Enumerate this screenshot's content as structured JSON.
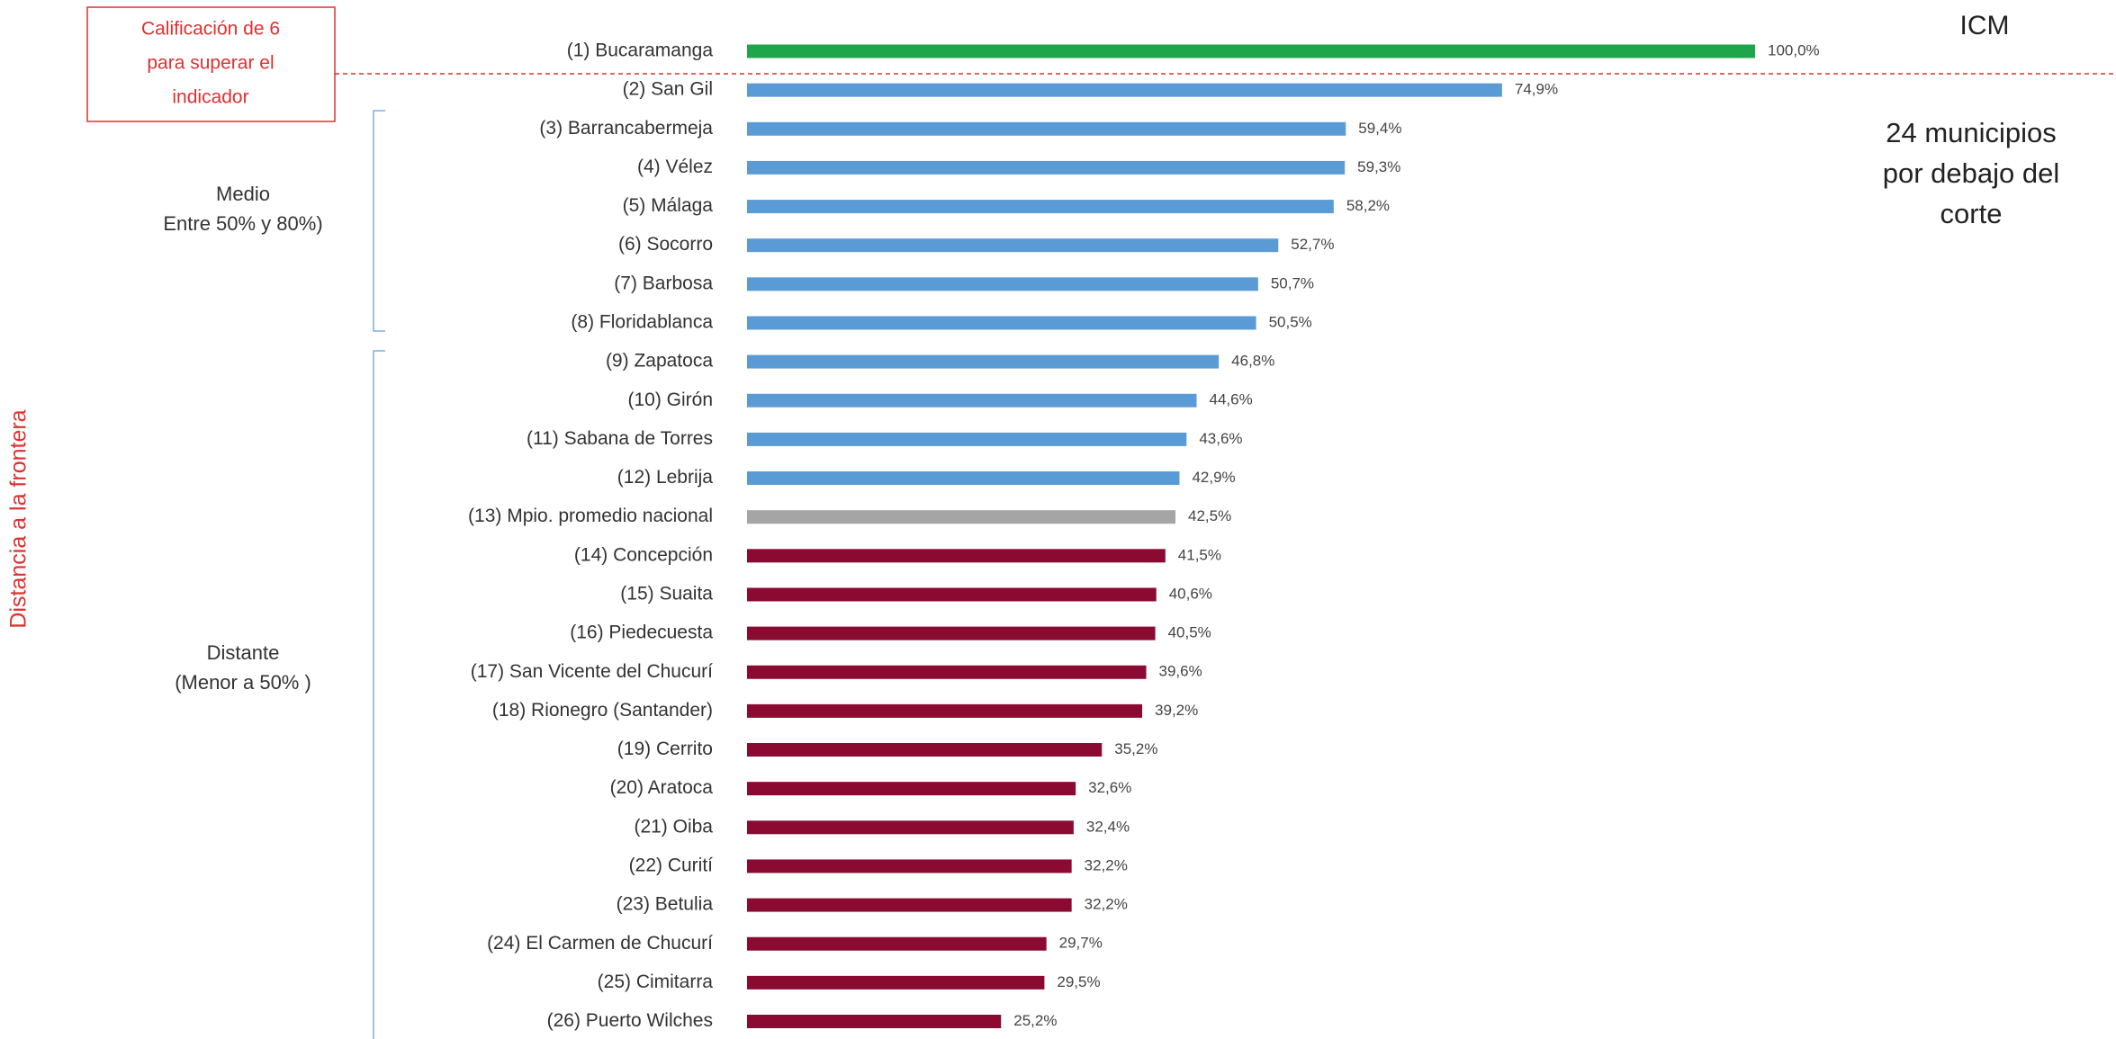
{
  "chart_data": {
    "type": "barh",
    "categories": [
      "(1) Bucaramanga",
      "(2) San Gil",
      "(3) Barrancabermeja",
      "(4) Vélez",
      "(5) Málaga",
      "(6) Socorro",
      "(7) Barbosa",
      "(8) Floridablanca",
      "(9) Zapatoca",
      "(10) Girón",
      "(11) Sabana de Torres",
      "(12) Lebrija",
      "(13) Mpio. promedio nacional",
      "(14) Concepción",
      "(15) Suaita",
      "(16) Piedecuesta",
      "(17) San Vicente del Chucurí",
      "(18) Rionegro (Santander)",
      "(19) Cerrito",
      "(20) Aratoca",
      "(21) Oiba",
      "(22) Curití",
      "(23) Betulia",
      "(24) El Carmen de Chucurí",
      "(25) Cimitarra",
      "(26) Puerto Wilches"
    ],
    "values": [
      100.0,
      74.9,
      59.4,
      59.3,
      58.2,
      52.7,
      50.7,
      50.5,
      46.8,
      44.6,
      43.6,
      42.9,
      42.5,
      41.5,
      40.6,
      40.5,
      39.6,
      39.2,
      35.2,
      32.6,
      32.4,
      32.2,
      32.2,
      29.7,
      29.5,
      25.2
    ],
    "value_labels": [
      "100,0%",
      "74,9%",
      "59,4%",
      "59,3%",
      "58,2%",
      "52,7%",
      "50,7%",
      "50,5%",
      "46,8%",
      "44,6%",
      "43,6%",
      "42,9%",
      "42,5%",
      "41,5%",
      "40,6%",
      "40,5%",
      "39,6%",
      "39,2%",
      "35,2%",
      "32,6%",
      "32,4%",
      "32,2%",
      "32,2%",
      "29,7%",
      "29,5%",
      "25,2%"
    ],
    "colors": [
      "#1fa64a",
      "#5b9bd5",
      "#5b9bd5",
      "#5b9bd5",
      "#5b9bd5",
      "#5b9bd5",
      "#5b9bd5",
      "#5b9bd5",
      "#5b9bd5",
      "#5b9bd5",
      "#5b9bd5",
      "#5b9bd5",
      "#a5a5a5",
      "#8b0a32",
      "#8b0a32",
      "#8b0a32",
      "#8b0a32",
      "#8b0a32",
      "#8b0a32",
      "#8b0a32",
      "#8b0a32",
      "#8b0a32",
      "#8b0a32",
      "#8b0a32",
      "#8b0a32",
      "#8b0a32"
    ],
    "xlim": [
      0,
      100
    ],
    "annotations": {
      "cutoff_box": [
        "Calificación de 6",
        "para superar el",
        "indicador"
      ],
      "medio": [
        "Medio",
        "Entre 50% y 80%)"
      ],
      "distante": [
        "Distante",
        "(Menor a 50% )"
      ],
      "axis_label": "Distancia a la frontera",
      "below_cut": [
        "24 municipios",
        "por debajo del",
        "corte"
      ],
      "icm": "ICM"
    }
  }
}
